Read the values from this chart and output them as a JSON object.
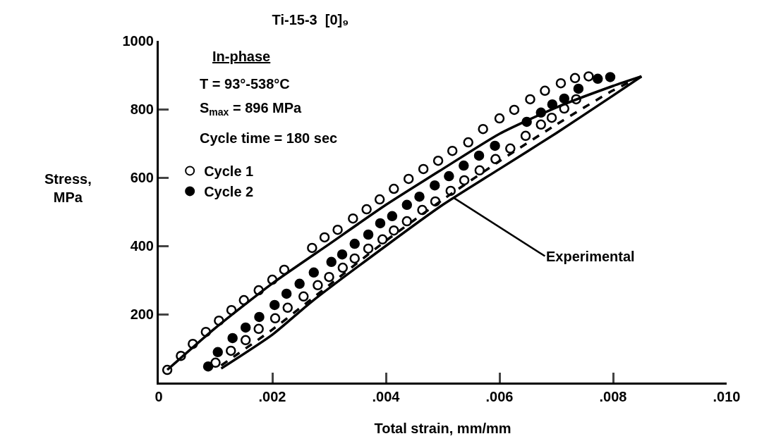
{
  "chart_data": {
    "type": "scatter",
    "title": "Ti-15-3  [0]₉",
    "xlabel": "Total strain, mm/mm",
    "ylabel": "Stress, MPa",
    "xlim": [
      0,
      0.01
    ],
    "ylim": [
      0,
      1000
    ],
    "xticks": [
      0,
      {
        "value": 0.002,
        "label": ".002"
      },
      {
        "value": 0.004,
        "label": ".004"
      },
      {
        "value": 0.006,
        "label": ".006"
      },
      {
        "value": 0.008,
        "label": ".008"
      },
      {
        "value": 0.01,
        "label": ".010"
      }
    ],
    "yticks": [
      {
        "value": 0,
        "label": null
      },
      200,
      400,
      600,
      800,
      1000
    ],
    "grid": false,
    "legend": "top left",
    "annotations": [
      "In-phase",
      "T = 93°-538°C",
      "S$_{max}$ = 896 MPa",
      "Cycle time = 180 sec",
      {
        "text": "Experimental",
        "x": 0.0052,
        "y": 540
      }
    ],
    "series": [
      {
        "name": "Cycle 1",
        "color": "#ffffff",
        "marker": "circle",
        "x": [
          0.00015,
          0.00039,
          0.0006,
          0.00083,
          0.00106,
          0.00128,
          0.0015,
          0.00176,
          0.002,
          0.00221,
          0.0027,
          0.00292,
          0.00315,
          0.00342,
          0.00366,
          0.00389,
          0.00414,
          0.0044,
          0.00466,
          0.00492,
          0.00517,
          0.00545,
          0.00571,
          0.006,
          0.00626,
          0.00654,
          0.0068,
          0.00708,
          0.00733,
          0.00757,
          0.00735,
          0.00714,
          0.00692,
          0.00673,
          0.00646,
          0.00619,
          0.00593,
          0.00565,
          0.00538,
          0.00514,
          0.00487,
          0.00464,
          0.00437,
          0.00414,
          0.00394,
          0.00369,
          0.00345,
          0.00324,
          0.003,
          0.0028,
          0.00255,
          0.00227,
          0.00205,
          0.00176,
          0.00153,
          0.00127,
          0.001
        ],
        "values": [
          37,
          78,
          113,
          148,
          181,
          212,
          241,
          270,
          301,
          330,
          394,
          425,
          447,
          480,
          507,
          536,
          567,
          596,
          625,
          649,
          678,
          703,
          742,
          773,
          798,
          829,
          854,
          876,
          891,
          896,
          829,
          802,
          775,
          755,
          722,
          685,
          654,
          621,
          592,
          561,
          530,
          505,
          472,
          445,
          419,
          392,
          363,
          336,
          309,
          285,
          252,
          219,
          188,
          157,
          124,
          93,
          58
        ]
      },
      {
        "name": "Cycle 2",
        "color": "#000000",
        "marker": "circle",
        "x": [
          0.00087,
          0.00104,
          0.0013,
          0.00153,
          0.00177,
          0.00204,
          0.00225,
          0.00248,
          0.00273,
          0.00304,
          0.00323,
          0.00345,
          0.00369,
          0.0039,
          0.00411,
          0.00437,
          0.00459,
          0.00486,
          0.00511,
          0.00537,
          0.00564,
          0.00592,
          0.00648,
          0.00673,
          0.00693,
          0.00714,
          0.00739,
          0.00773,
          0.00795
        ],
        "values": [
          47,
          89,
          130,
          161,
          192,
          227,
          260,
          289,
          322,
          353,
          375,
          406,
          433,
          466,
          487,
          520,
          544,
          577,
          604,
          635,
          664,
          693,
          763,
          790,
          814,
          831,
          860,
          889,
          894
        ]
      },
      {
        "type": "line",
        "color": "#000000",
        "line_style": "solid",
        "marker": "none",
        "x": [
          0.00015,
          0.001,
          0.002,
          0.003,
          0.004,
          0.005,
          0.006,
          0.007,
          0.008,
          0.0085
        ],
        "values": [
          37,
          160,
          290,
          405,
          520,
          625,
          728,
          805,
          868,
          896
        ]
      },
      {
        "type": "line",
        "color": "#000000",
        "line_style": "solid",
        "marker": "none",
        "x": [
          0.0011,
          0.002,
          0.00268,
          0.004,
          0.005,
          0.006,
          0.007,
          0.008,
          0.0085
        ],
        "values": [
          41,
          140,
          235,
          400,
          520,
          625,
          730,
          840,
          896
        ]
      },
      {
        "type": "line",
        "color": "#000000",
        "line_style": "dashed",
        "marker": "none",
        "x": [
          0.0011,
          0.002,
          0.003,
          0.004,
          0.005,
          0.006,
          0.007,
          0.008,
          0.0085
        ],
        "values": [
          50,
          155,
          285,
          415,
          535,
          648,
          755,
          855,
          896
        ]
      }
    ]
  }
}
